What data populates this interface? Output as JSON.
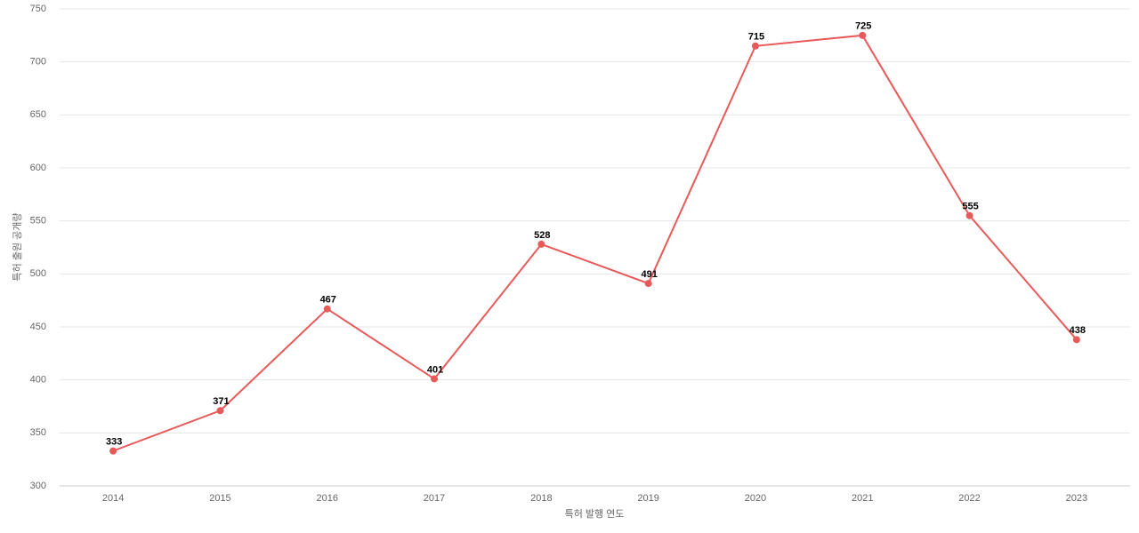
{
  "chart_data": {
    "type": "line",
    "x_label": "특허 발행 연도",
    "y_label": "특허 출원 공개량",
    "categories": [
      "2014",
      "2015",
      "2016",
      "2017",
      "2018",
      "2019",
      "2020",
      "2021",
      "2022",
      "2023"
    ],
    "values": [
      333,
      371,
      467,
      401,
      528,
      491,
      715,
      725,
      555,
      438
    ],
    "color": "#e85a5a",
    "ylim": [
      300,
      750
    ],
    "yticks": [
      300,
      350,
      400,
      450,
      500,
      550,
      600,
      650,
      700,
      750
    ],
    "grid": true
  }
}
